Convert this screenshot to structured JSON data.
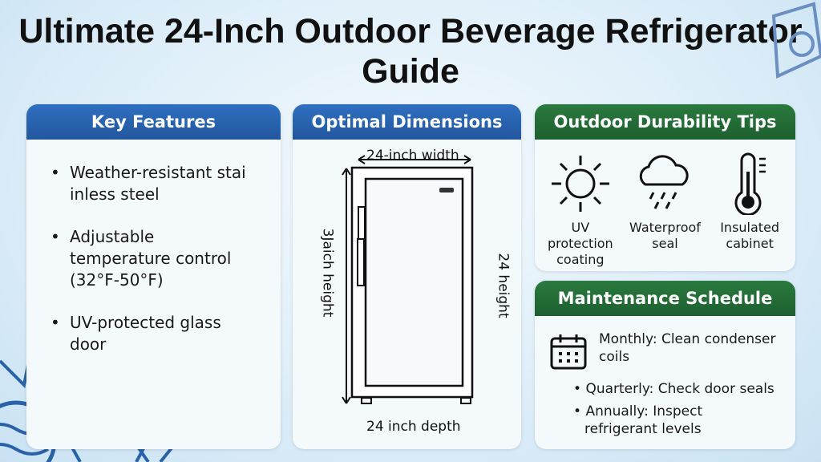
{
  "title": "Ultimate 24-Inch Outdoor Beverage Refrigerator Guide",
  "key_features": {
    "heading": "Key Features",
    "items": [
      "Weather-resistant stai inless steel",
      "Adjustable temperature control (32°F-50°F)",
      "UV-protected glass door"
    ]
  },
  "dimensions": {
    "heading": "Optimal Dimensions",
    "width_label": "24-inch width",
    "left_label": "3Jaich height",
    "right_label": "24 height",
    "depth_label": "24 inch depth"
  },
  "durability": {
    "heading": "Outdoor Durability Tips",
    "tips": [
      {
        "icon": "sun-icon",
        "label": "UV protection coating"
      },
      {
        "icon": "rain-cloud-icon",
        "label": "Waterproof seal"
      },
      {
        "icon": "thermometer-icon",
        "label": "Insulated cabinet"
      }
    ]
  },
  "maintenance": {
    "heading": "Maintenance Schedule",
    "icon": "calendar-icon",
    "items": [
      "Monthly: Clean condenser coils",
      "Quarterly: Check door seals",
      "Annually: Inspect refrigerant levels"
    ]
  },
  "colors": {
    "blue_header": "#2a66b8",
    "green_header": "#1f6b35"
  }
}
